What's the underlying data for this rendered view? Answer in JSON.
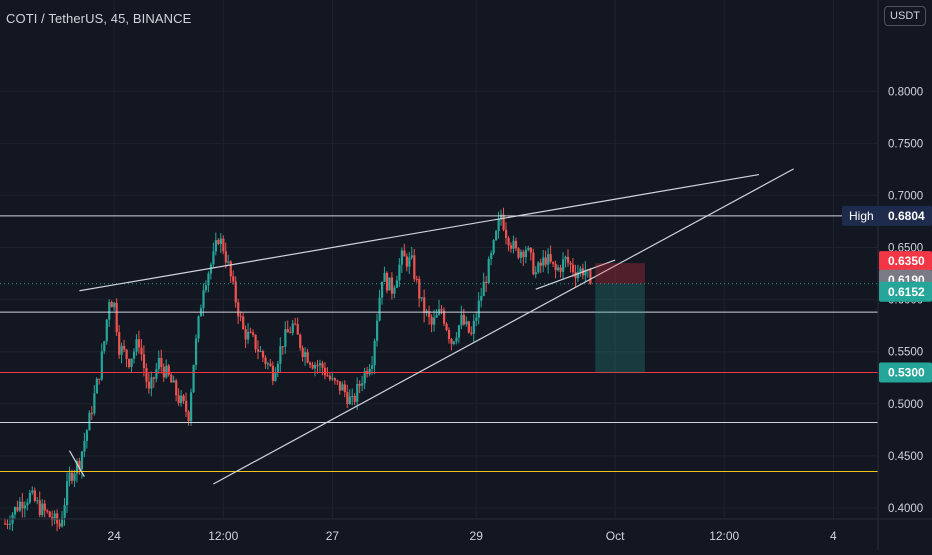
{
  "header": {
    "symbol": "COTI / TetherUS, 45, BINANCE",
    "currency_button": "USDT"
  },
  "colors": {
    "background": "#131722",
    "up": "#26a69a",
    "down": "#ef5350",
    "axis_text": "#d1d4dc",
    "grid": "#1e222d",
    "line_white": "#d1d4dc",
    "line_red": "#f23645",
    "line_yellow": "#f0c419",
    "last_price": "#26a69a",
    "stop_label": "#f23645",
    "entry_label": "#787b86",
    "high_label": "#1e2b4d"
  },
  "chart_data": {
    "type": "candlestick",
    "title": "COTI / TetherUS, 45, BINANCE",
    "ylim": [
      0.375,
      0.83
    ],
    "y_ticks": [
      "0.8000",
      "0.7500",
      "0.7000",
      "0.6500",
      "0.6000",
      "0.5500",
      "0.5000",
      "0.4500",
      "0.4000"
    ],
    "x_ticks": [
      "24",
      "12:00",
      "27",
      "29",
      "Oct",
      "12:00",
      "4"
    ],
    "x_range": [
      0,
      176
    ],
    "x_tick_positions": [
      22,
      44,
      66,
      95,
      123,
      145,
      167
    ],
    "price_series": [
      [
        0,
        0.385
      ],
      [
        3,
        0.405
      ],
      [
        5,
        0.412
      ],
      [
        7,
        0.4
      ],
      [
        9,
        0.392
      ],
      [
        11,
        0.383
      ],
      [
        13,
        0.43
      ],
      [
        15,
        0.445
      ],
      [
        17,
        0.485
      ],
      [
        19,
        0.53
      ],
      [
        20,
        0.56
      ],
      [
        21,
        0.602
      ],
      [
        22,
        0.595
      ],
      [
        23,
        0.555
      ],
      [
        25,
        0.542
      ],
      [
        27,
        0.56
      ],
      [
        29,
        0.51
      ],
      [
        31,
        0.54
      ],
      [
        33,
        0.525
      ],
      [
        35,
        0.505
      ],
      [
        37,
        0.49
      ],
      [
        38,
        0.54
      ],
      [
        40,
        0.615
      ],
      [
        42,
        0.64
      ],
      [
        43,
        0.66
      ],
      [
        44,
        0.65
      ],
      [
        45,
        0.632
      ],
      [
        46,
        0.61
      ],
      [
        48,
        0.57
      ],
      [
        50,
        0.56
      ],
      [
        52,
        0.545
      ],
      [
        54,
        0.53
      ],
      [
        56,
        0.56
      ],
      [
        58,
        0.575
      ],
      [
        60,
        0.552
      ],
      [
        62,
        0.54
      ],
      [
        64,
        0.535
      ],
      [
        66,
        0.52
      ],
      [
        68,
        0.515
      ],
      [
        70,
        0.5
      ],
      [
        72,
        0.525
      ],
      [
        74,
        0.545
      ],
      [
        76,
        0.623
      ],
      [
        78,
        0.61
      ],
      [
        80,
        0.64
      ],
      [
        82,
        0.635
      ],
      [
        84,
        0.595
      ],
      [
        86,
        0.575
      ],
      [
        88,
        0.59
      ],
      [
        90,
        0.56
      ],
      [
        92,
        0.58
      ],
      [
        94,
        0.565
      ],
      [
        96,
        0.605
      ],
      [
        98,
        0.64
      ],
      [
        100,
        0.682
      ],
      [
        101,
        0.665
      ],
      [
        103,
        0.645
      ],
      [
        105,
        0.65
      ],
      [
        107,
        0.625
      ],
      [
        109,
        0.64
      ],
      [
        111,
        0.627
      ],
      [
        113,
        0.638
      ],
      [
        115,
        0.627
      ],
      [
        117,
        0.629
      ],
      [
        118,
        0.6152
      ]
    ],
    "horizontal_levels": [
      {
        "price": 0.6804,
        "color": "white"
      },
      {
        "price": 0.588,
        "color": "white"
      },
      {
        "price": 0.53,
        "color": "red"
      },
      {
        "price": 0.482,
        "color": "white"
      },
      {
        "price": 0.435,
        "color": "yellow"
      }
    ],
    "trendlines": [
      {
        "points": [
          [
            15,
            0.6085
          ],
          [
            152,
            0.72
          ]
        ]
      },
      {
        "points": [
          [
            42,
            0.423
          ],
          [
            159,
            0.7255
          ]
        ]
      },
      {
        "points": [
          [
            107,
            0.61
          ],
          [
            123,
            0.638
          ]
        ]
      },
      {
        "points": [
          [
            13,
            0.455
          ],
          [
            16,
            0.43
          ]
        ]
      }
    ],
    "short_position": {
      "x_start": 119,
      "x_end": 129,
      "entry": 0.6152,
      "stop": 0.635,
      "target": 0.53
    },
    "price_labels": [
      {
        "label": "High",
        "value": "0.6804",
        "price": 0.6804,
        "style": "high"
      },
      {
        "value": "0.6350",
        "price": 0.635,
        "style": "stop"
      },
      {
        "value": "0.6190",
        "price": 0.619,
        "style": "entry"
      },
      {
        "value": "0.6152",
        "price": 0.6152,
        "style": "last"
      },
      {
        "value": "0.5300",
        "price": 0.53,
        "style": "target"
      }
    ]
  }
}
